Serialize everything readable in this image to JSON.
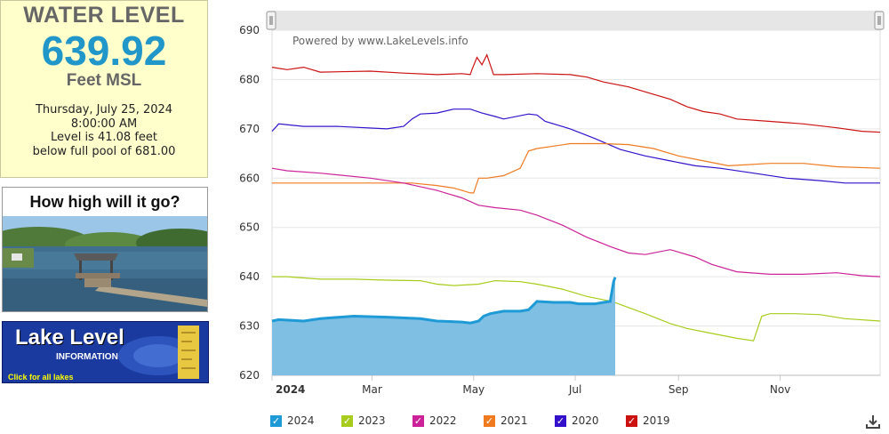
{
  "level": {
    "title": "WATER LEVEL",
    "value": "639.92",
    "unit": "Feet MSL",
    "date": "Thursday, July 25, 2024",
    "time": "8:00:00 AM",
    "diff_line": "Level is 41.08 feet",
    "pool_line": "below full pool of 681.00"
  },
  "promo": {
    "title": "How high will it go?"
  },
  "banner": {
    "title": "Lake Level",
    "subtitle": "INFORMATION",
    "click": "Click for all lakes"
  },
  "colors": {
    "2024": "#1e9ad6",
    "2023": "#a8cc1c",
    "2022": "#cc2299",
    "2021": "#f07a20",
    "2020": "#3311cc",
    "2019": "#cc1111"
  },
  "chart_data": {
    "type": "line",
    "title": "",
    "credit": "Powered by www.LakeLevels.info",
    "xlabel": "",
    "ylabel": "",
    "xlim": [
      1,
      366
    ],
    "ylim": [
      620,
      690
    ],
    "y_ticks": [
      620,
      630,
      640,
      650,
      660,
      670,
      680,
      690
    ],
    "x_ticks": [
      {
        "day": 1,
        "label": "2024"
      },
      {
        "day": 61,
        "label": "Mar"
      },
      {
        "day": 122,
        "label": "May"
      },
      {
        "day": 183,
        "label": "Jul"
      },
      {
        "day": 245,
        "label": "Sep"
      },
      {
        "day": 306,
        "label": "Nov"
      }
    ],
    "series": [
      {
        "name": "2019",
        "x": [
          1,
          10,
          20,
          30,
          60,
          80,
          100,
          115,
          120,
          121,
          124,
          127,
          130,
          134,
          140,
          160,
          180,
          190,
          200,
          215,
          230,
          240,
          250,
          260,
          270,
          280,
          300,
          320,
          340,
          355,
          366
        ],
        "values": [
          682.5,
          682,
          682.5,
          681.5,
          681.7,
          681.3,
          681,
          681.2,
          681,
          682,
          684.5,
          683,
          685,
          681,
          681,
          681.2,
          681,
          680.5,
          679.5,
          678.5,
          677,
          676,
          674.5,
          673.5,
          673,
          672,
          671.5,
          671,
          670.2,
          669.5,
          669.3
        ]
      },
      {
        "name": "2020",
        "x": [
          1,
          5,
          20,
          40,
          70,
          80,
          85,
          90,
          100,
          110,
          120,
          127,
          135,
          140,
          155,
          160,
          165,
          180,
          195,
          210,
          225,
          240,
          255,
          270,
          290,
          310,
          330,
          345,
          366
        ],
        "values": [
          669.5,
          671,
          670.5,
          670.5,
          670,
          670.5,
          672,
          673,
          673.2,
          674,
          674,
          673.2,
          672.5,
          672,
          673,
          672.8,
          671.5,
          670,
          668,
          665.8,
          664.5,
          663.5,
          662.5,
          662,
          661,
          660,
          659.5,
          659,
          659
        ]
      },
      {
        "name": "2021",
        "x": [
          1,
          20,
          40,
          70,
          85,
          100,
          110,
          115,
          120,
          122,
          125,
          130,
          140,
          150,
          155,
          160,
          170,
          180,
          200,
          215,
          230,
          245,
          260,
          275,
          300,
          320,
          340,
          366
        ],
        "values": [
          659,
          659,
          659,
          659,
          659,
          658.5,
          658,
          657.5,
          657,
          657,
          660,
          660,
          660.5,
          662,
          665.5,
          666,
          666.5,
          667,
          667,
          666.8,
          666,
          664.5,
          663.5,
          662.5,
          663,
          663,
          662.3,
          662
        ]
      },
      {
        "name": "2022",
        "x": [
          1,
          10,
          30,
          60,
          80,
          100,
          115,
          125,
          135,
          150,
          160,
          175,
          190,
          205,
          215,
          225,
          240,
          245,
          255,
          265,
          280,
          300,
          320,
          340,
          355,
          366
        ],
        "values": [
          662,
          661.5,
          661,
          660,
          659,
          657.5,
          656,
          654.5,
          654,
          653.5,
          652.5,
          650.5,
          648,
          646,
          644.8,
          644.5,
          645.5,
          645,
          644,
          642.5,
          641,
          640.5,
          640.5,
          640.8,
          640.2,
          640
        ]
      },
      {
        "name": "2023",
        "x": [
          1,
          10,
          30,
          50,
          70,
          90,
          100,
          110,
          125,
          135,
          150,
          160,
          175,
          190,
          205,
          225,
          240,
          250,
          265,
          280,
          290,
          295,
          300,
          315,
          330,
          345,
          366
        ],
        "values": [
          640,
          640,
          639.5,
          639.5,
          639.3,
          639.2,
          638.5,
          638.2,
          638.5,
          639.2,
          639,
          638.5,
          637.5,
          636,
          635,
          632.5,
          630.5,
          629.5,
          628.5,
          627.5,
          627,
          632,
          632.5,
          632.5,
          632.3,
          631.5,
          631
        ]
      },
      {
        "name": "2024",
        "x": [
          1,
          5,
          20,
          30,
          50,
          70,
          90,
          100,
          115,
          120,
          125,
          128,
          132,
          140,
          150,
          155,
          160,
          170,
          180,
          185,
          195,
          200,
          204,
          206,
          207
        ],
        "values": [
          631,
          631.3,
          631,
          631.5,
          632,
          631.8,
          631.5,
          631,
          630.8,
          630.6,
          631,
          632,
          632.5,
          633,
          633,
          633.3,
          635,
          634.8,
          634.8,
          634.5,
          634.5,
          634.8,
          635,
          639,
          639.9
        ]
      }
    ]
  },
  "legend": [
    {
      "year": "2024",
      "label": "2024"
    },
    {
      "year": "2023",
      "label": "2023"
    },
    {
      "year": "2022",
      "label": "2022"
    },
    {
      "year": "2021",
      "label": "2021"
    },
    {
      "year": "2020",
      "label": "2020"
    },
    {
      "year": "2019",
      "label": "2019"
    }
  ]
}
